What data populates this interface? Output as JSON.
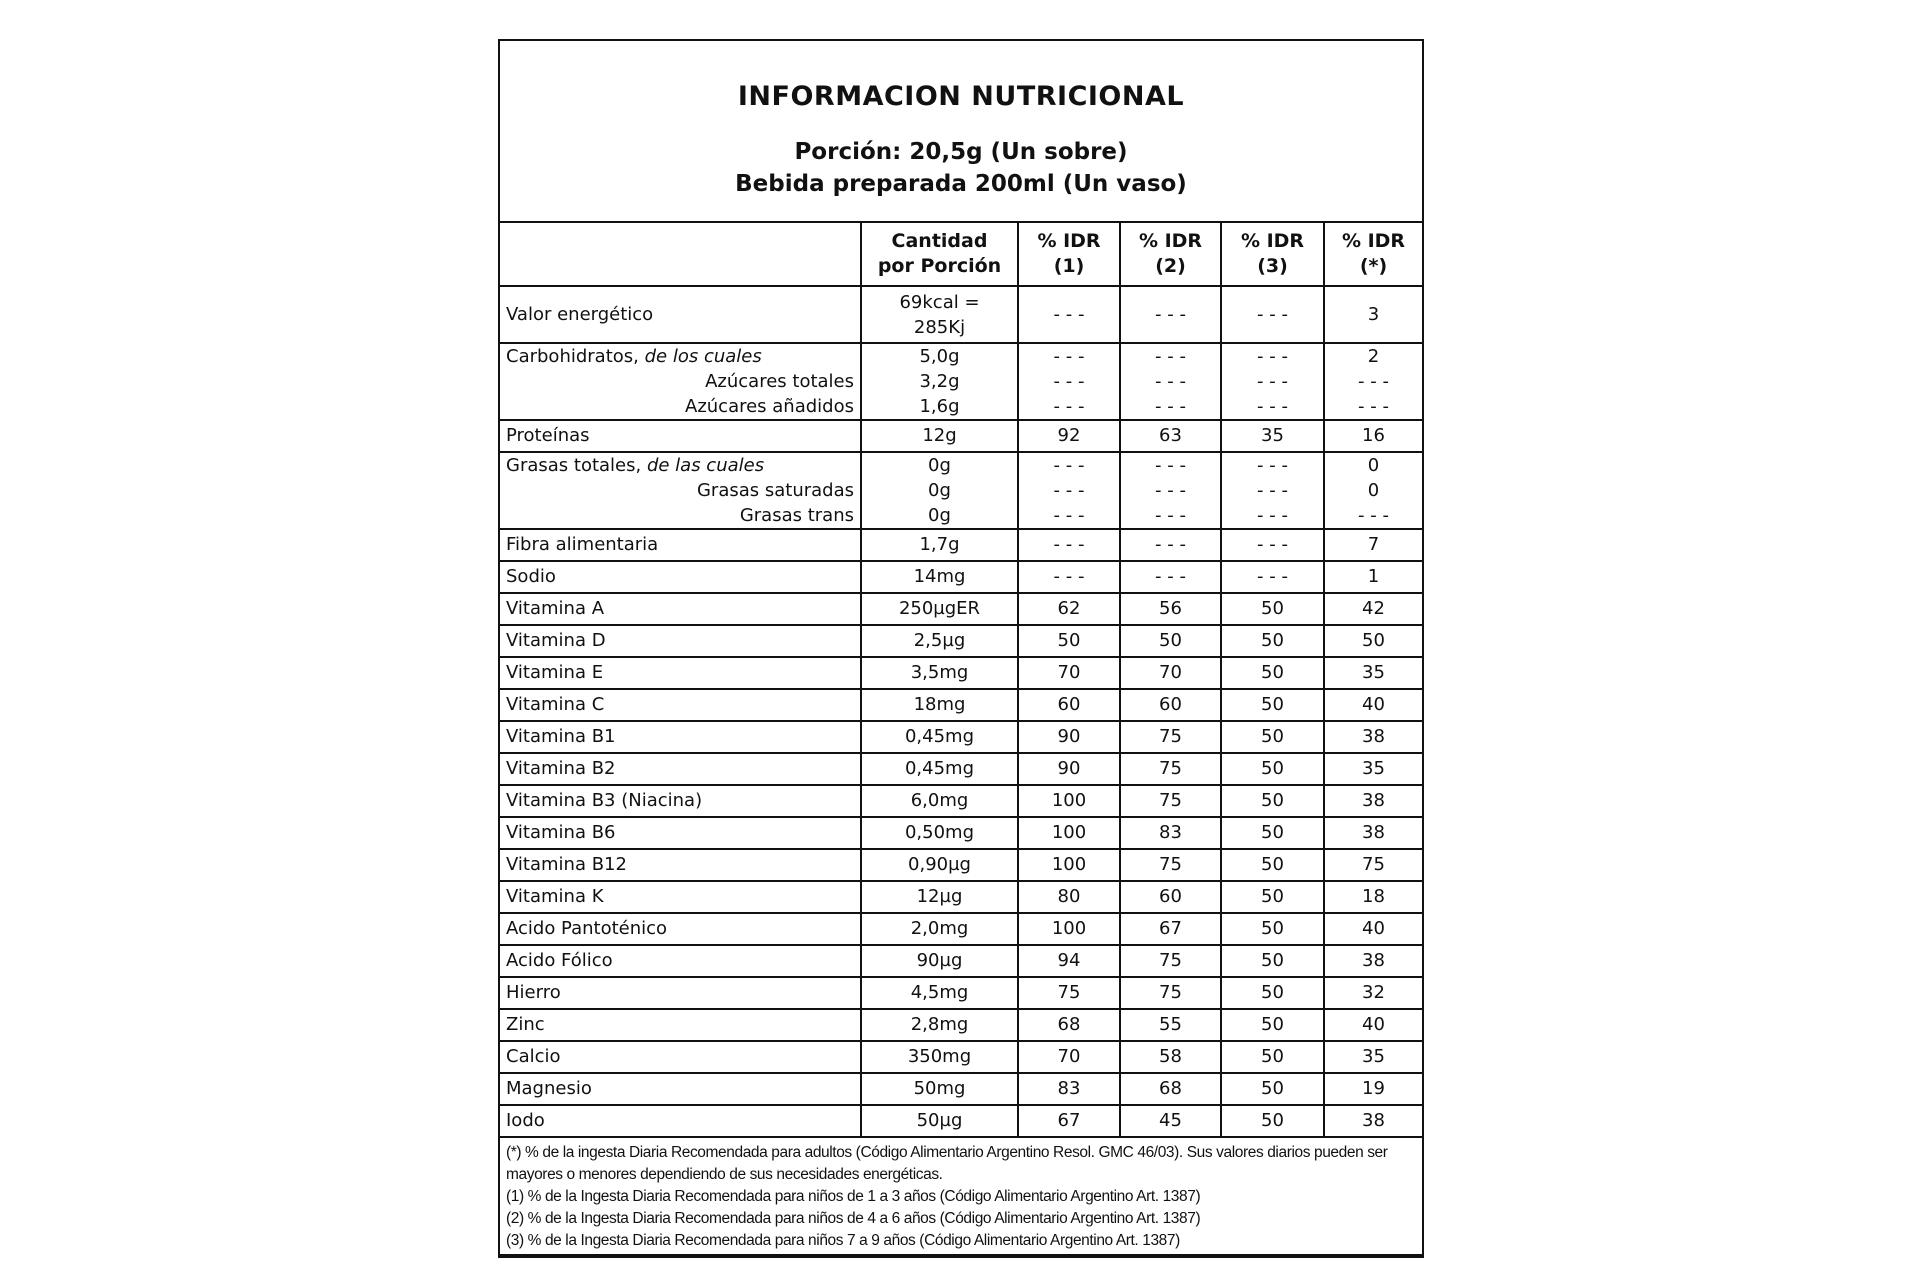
{
  "header": {
    "title": "INFORMACION NUTRICIONAL",
    "portion": "Porción: 20,5g (Un sobre)",
    "prepared": "Bebida preparada 200ml (Un vaso)"
  },
  "columns": {
    "amount": [
      "Cantidad",
      "por Porción"
    ],
    "idr1": [
      "% IDR",
      "(1)"
    ],
    "idr2": [
      "% IDR",
      "(2)"
    ],
    "idr3": [
      "% IDR",
      "(3)"
    ],
    "idr_adult": [
      "% IDR",
      "(*)"
    ]
  },
  "energy": {
    "label": "Valor energético",
    "amount": [
      "69kcal =",
      "285Kj"
    ],
    "idr1": "- - -",
    "idr2": "- - -",
    "idr3": "- - -",
    "idra": "3"
  },
  "carbs": {
    "label": "Carbohidratos, ",
    "label_italic": "de los cuales",
    "rows": [
      {
        "label": "",
        "amount": "5,0g",
        "idr1": "- - -",
        "idr2": "- - -",
        "idr3": "- - -",
        "idra": "2"
      },
      {
        "label": "Azúcares totales",
        "amount": "3,2g",
        "idr1": "- - -",
        "idr2": "- - -",
        "idr3": "- - -",
        "idra": "- - -"
      },
      {
        "label": "Azúcares añadidos",
        "amount": "1,6g",
        "idr1": "- - -",
        "idr2": "- - -",
        "idr3": "- - -",
        "idra": "- - -"
      }
    ]
  },
  "proteins": {
    "label": "Proteínas",
    "amount": "12g",
    "idr1": "92",
    "idr2": "63",
    "idr3": "35",
    "idra": "16"
  },
  "fats": {
    "label": "Grasas totales, ",
    "label_italic": "de las cuales",
    "rows": [
      {
        "label": "",
        "amount": "0g",
        "idr1": "- - -",
        "idr2": "- - -",
        "idr3": "- - -",
        "idra": "0"
      },
      {
        "label": "Grasas saturadas",
        "amount": "0g",
        "idr1": "- - -",
        "idr2": "- - -",
        "idr3": "- - -",
        "idra": "0"
      },
      {
        "label": "Grasas trans",
        "amount": "0g",
        "idr1": "- - -",
        "idr2": "- - -",
        "idr3": "- - -",
        "idra": "- - -"
      }
    ]
  },
  "rows": [
    {
      "label": "Fibra alimentaria",
      "amount": "1,7g",
      "idr1": "- - -",
      "idr2": "- - -",
      "idr3": "- - -",
      "idra": "7"
    },
    {
      "label": "Sodio",
      "amount": "14mg",
      "idr1": "- - -",
      "idr2": "- - -",
      "idr3": "- - -",
      "idra": "1"
    },
    {
      "label": "Vitamina A",
      "amount": "250µgER",
      "idr1": "62",
      "idr2": "56",
      "idr3": "50",
      "idra": "42"
    },
    {
      "label": "Vitamina D",
      "amount": "2,5µg",
      "idr1": "50",
      "idr2": "50",
      "idr3": "50",
      "idra": "50"
    },
    {
      "label": "Vitamina E",
      "amount": "3,5mg",
      "idr1": "70",
      "idr2": "70",
      "idr3": "50",
      "idra": "35"
    },
    {
      "label": "Vitamina C",
      "amount": "18mg",
      "idr1": "60",
      "idr2": "60",
      "idr3": "50",
      "idra": "40"
    },
    {
      "label": "Vitamina B1",
      "amount": "0,45mg",
      "idr1": "90",
      "idr2": "75",
      "idr3": "50",
      "idra": "38"
    },
    {
      "label": "Vitamina B2",
      "amount": "0,45mg",
      "idr1": "90",
      "idr2": "75",
      "idr3": "50",
      "idra": "35"
    },
    {
      "label": "Vitamina B3 (Niacina)",
      "amount": "6,0mg",
      "idr1": "100",
      "idr2": "75",
      "idr3": "50",
      "idra": "38"
    },
    {
      "label": "Vitamina B6",
      "amount": "0,50mg",
      "idr1": "100",
      "idr2": "83",
      "idr3": "50",
      "idra": "38"
    },
    {
      "label": "Vitamina B12",
      "amount": "0,90µg",
      "idr1": "100",
      "idr2": "75",
      "idr3": "50",
      "idra": "75"
    },
    {
      "label": "Vitamina K",
      "amount": "12µg",
      "idr1": "80",
      "idr2": "60",
      "idr3": "50",
      "idra": "18"
    },
    {
      "label": "Acido Pantoténico",
      "amount": "2,0mg",
      "idr1": "100",
      "idr2": "67",
      "idr3": "50",
      "idra": "40"
    },
    {
      "label": "Acido Fólico",
      "amount": "90µg",
      "idr1": "94",
      "idr2": "75",
      "idr3": "50",
      "idra": "38"
    },
    {
      "label": "Hierro",
      "amount": "4,5mg",
      "idr1": "75",
      "idr2": "75",
      "idr3": "50",
      "idra": "32"
    },
    {
      "label": "Zinc",
      "amount": "2,8mg",
      "idr1": "68",
      "idr2": "55",
      "idr3": "50",
      "idra": "40"
    },
    {
      "label": "Calcio",
      "amount": "350mg",
      "idr1": "70",
      "idr2": "58",
      "idr3": "50",
      "idra": "35"
    },
    {
      "label": "Magnesio",
      "amount": "50mg",
      "idr1": "83",
      "idr2": "68",
      "idr3": "50",
      "idra": "19"
    },
    {
      "label": "Iodo",
      "amount": "50µg",
      "idr1": "67",
      "idr2": "45",
      "idr3": "50",
      "idra": "38"
    }
  ],
  "footnotes": [
    "(*) % de la ingesta Diaria Recomendada para adultos (Código Alimentario Argentino Resol. GMC 46/03). Sus valores diarios pueden ser mayores o menores dependiendo de sus necesidades energéticas.",
    "(1) % de la Ingesta Diaria Recomendada para niños de 1 a 3 años (Código Alimentario Argentino Art. 1387)",
    "(2) % de la Ingesta Diaria Recomendada para niños de 4 a 6 años (Código Alimentario Argentino Art. 1387)",
    "(3) % de la Ingesta Diaria Recomendada para niños 7 a 9 años (Código Alimentario Argentino Art. 1387)"
  ]
}
